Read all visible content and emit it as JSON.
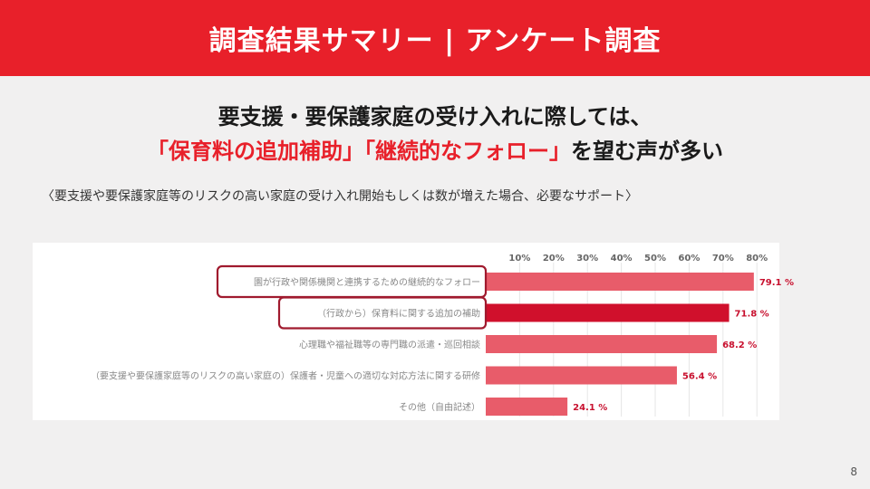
{
  "header": {
    "title": "調査結果サマリー | アンケート調査"
  },
  "headline": {
    "line1": "要支援・要保護家庭の受け入れに際しては、",
    "highlight1": "「保育料の追加補助」",
    "highlight2": "「継続的なフォロー」",
    "line2_tail": "を望む声が多い"
  },
  "subnote": "〈要支援や要保護家庭等のリスクの高い家庭の受け入れ開始もしくは数が増えた場合、必要なサポート〉",
  "page_number": "8",
  "colors": {
    "accent": "#e8202a",
    "bar_light": "#e85c6a",
    "bar_dark": "#d0102c",
    "highlight_box": "#a01a2e"
  },
  "chart_data": {
    "type": "bar",
    "orientation": "horizontal",
    "categories": [
      "園が行政や関係機関と連携するための継続的なフォロー",
      "（行政から）保育料に関する追加の補助",
      "心理職や福祉職等の専門職の派遣・巡回相談",
      "（要支援や要保護家庭等のリスクの高い家庭の）保護者・児童への適切な対応方法に関する研修",
      "その他（自由記述）"
    ],
    "values": [
      79.1,
      71.8,
      68.2,
      56.4,
      24.1
    ],
    "value_labels": [
      "79.1 %",
      "71.8 %",
      "68.2 %",
      "56.4 %",
      "24.1 %"
    ],
    "highlighted": [
      0,
      1
    ],
    "x_ticks": [
      "10%",
      "20%",
      "30%",
      "40%",
      "50%",
      "60%",
      "70%",
      "80%"
    ],
    "xlim": [
      0,
      80
    ],
    "grid": true
  }
}
